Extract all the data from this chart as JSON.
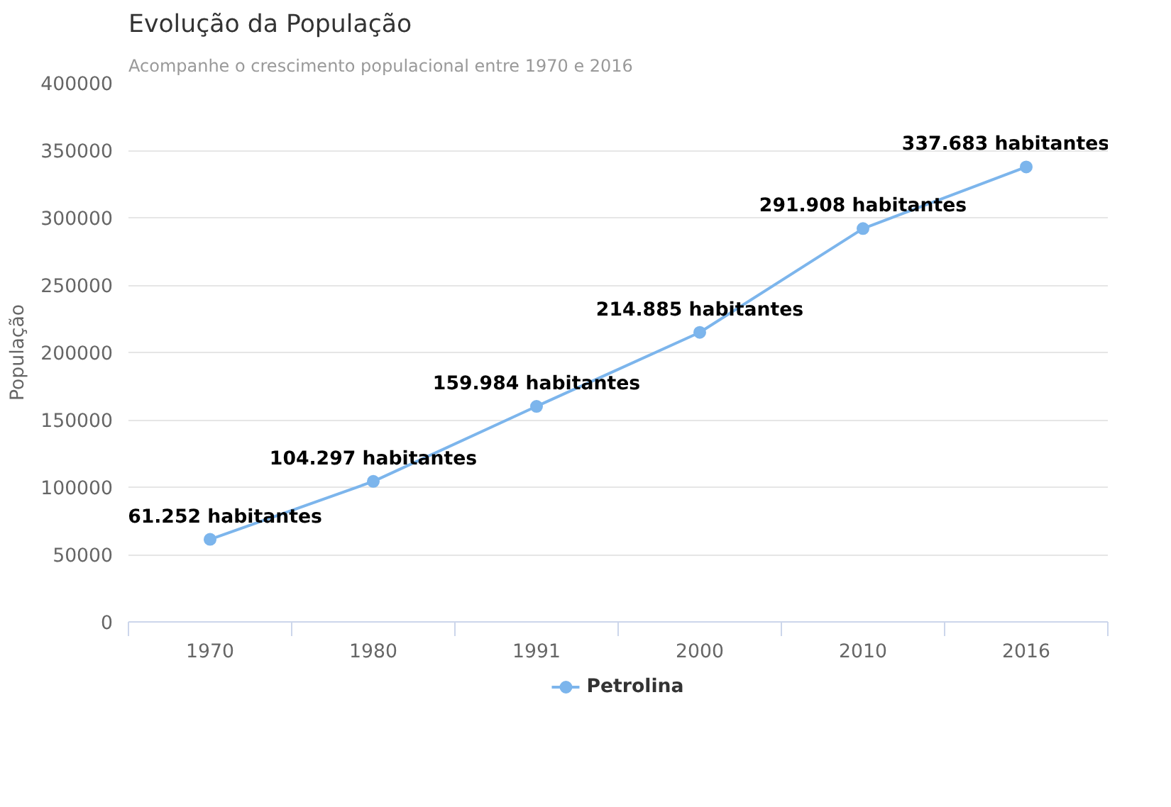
{
  "chart_data": {
    "type": "line",
    "title": "Evolução da População",
    "subtitle": "Acompanhe o crescimento populacional entre 1970 e 2016",
    "ylabel": "População",
    "categories": [
      "1970",
      "1980",
      "1991",
      "2000",
      "2010",
      "2016"
    ],
    "series": [
      {
        "name": "Petrolina",
        "color": "#7cb5ec",
        "values": [
          61252,
          104297,
          159984,
          214885,
          291908,
          337683
        ],
        "value_labels": [
          "61.252 habitantes",
          "104.297 habitantes",
          "159.984 habitantes",
          "214.885 habitantes",
          "291.908 habitantes",
          "337.683 habitantes"
        ]
      }
    ],
    "ylim": [
      0,
      400000
    ],
    "yticks": [
      0,
      50000,
      100000,
      150000,
      200000,
      250000,
      300000,
      350000,
      400000
    ],
    "grid": "y",
    "legend": "bottom",
    "marker": "circle",
    "line_style": "solid"
  }
}
